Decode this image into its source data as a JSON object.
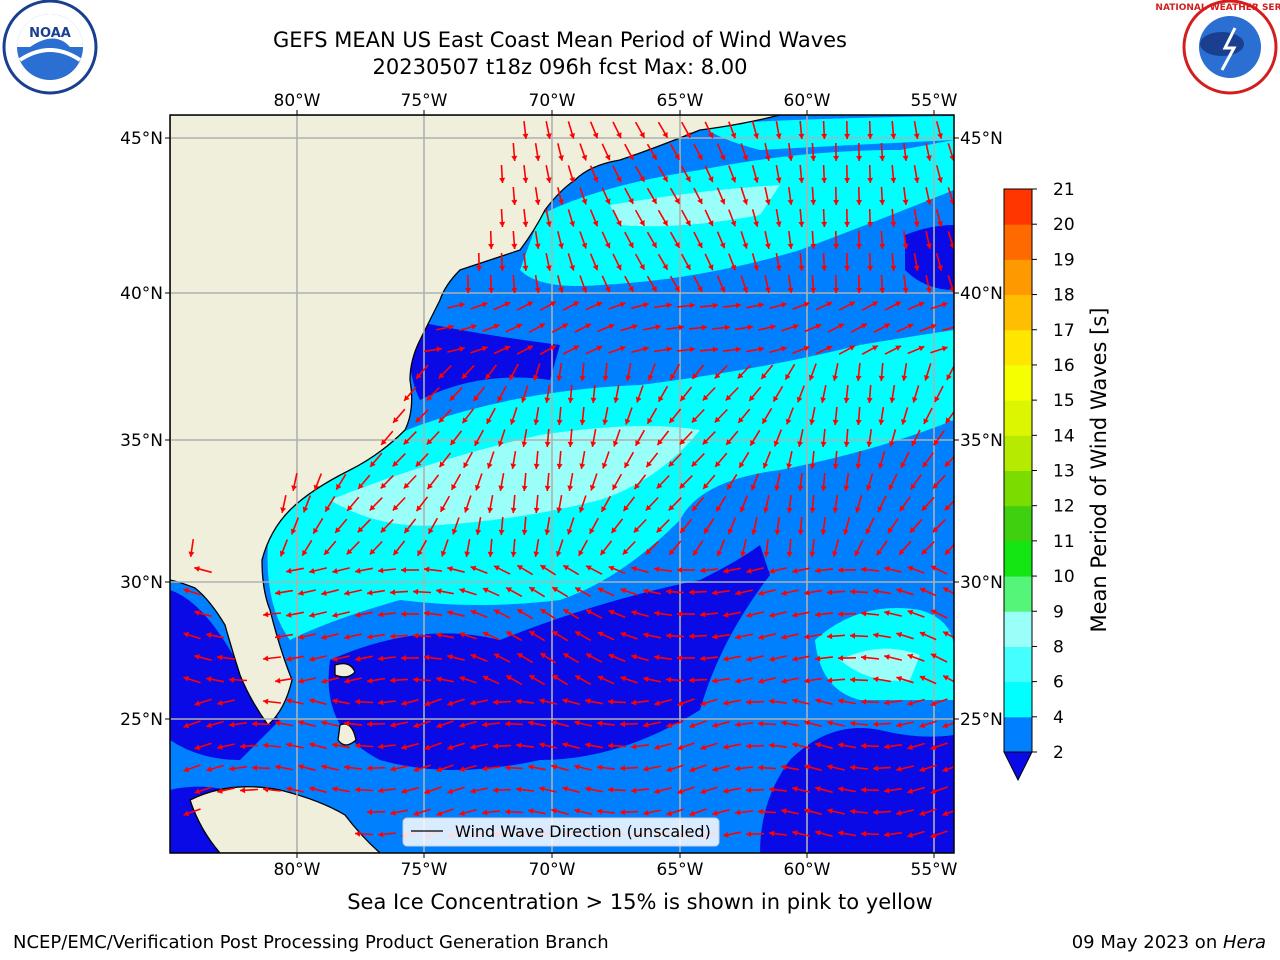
{
  "header": {
    "title_line1": "GEFS MEAN US East Coast Mean Period of Wind Waves",
    "title_line2": "20230507 t18z 096h fcst   Max: 8.00"
  },
  "logos": {
    "left": {
      "icon": "noaa-logo",
      "text": "NOAA"
    },
    "right": {
      "icon": "nws-logo",
      "text": "NATIONAL WEATHER SERVICE"
    }
  },
  "map": {
    "lon_labels": [
      "80°W",
      "75°W",
      "70°W",
      "65°W",
      "60°W",
      "55°W"
    ],
    "lat_labels": [
      "45°N",
      "40°N",
      "35°N",
      "30°N",
      "25°N"
    ],
    "legend_label": "Wind Wave Direction (unscaled)",
    "colors": {
      "land": "#efefdc",
      "band_2_4": "#0080ff",
      "band_0_2": "#0a0ae6",
      "band_4_6": "#00ffff",
      "band_6_8": "#9bfff9",
      "arrow": "#ff0000"
    }
  },
  "colorbar": {
    "label": "Mean Period of Wind Waves [s]",
    "ticks": [
      "2",
      "4",
      "6",
      "8",
      "9",
      "10",
      "11",
      "12",
      "13",
      "14",
      "15",
      "16",
      "17",
      "18",
      "19",
      "20",
      "21"
    ],
    "colors": [
      "#0080ff",
      "#00ffff",
      "#45ffff",
      "#9bfff9",
      "#55f57a",
      "#14e614",
      "#3fd10f",
      "#7bdc00",
      "#b6ea00",
      "#dcf500",
      "#f5ff00",
      "#ffe600",
      "#ffbf00",
      "#ff9900",
      "#ff6a00",
      "#ff3600",
      "#ff0000"
    ],
    "extend_color": "#0a0ae6"
  },
  "notes": {
    "sea_ice": "Sea Ice Concentration > 15% is shown in pink to yellow"
  },
  "footer": {
    "left": "NCEP/EMC/Verification Post Processing Product Generation Branch",
    "right_date": "09 May 2023 on ",
    "right_host": "Hera"
  }
}
